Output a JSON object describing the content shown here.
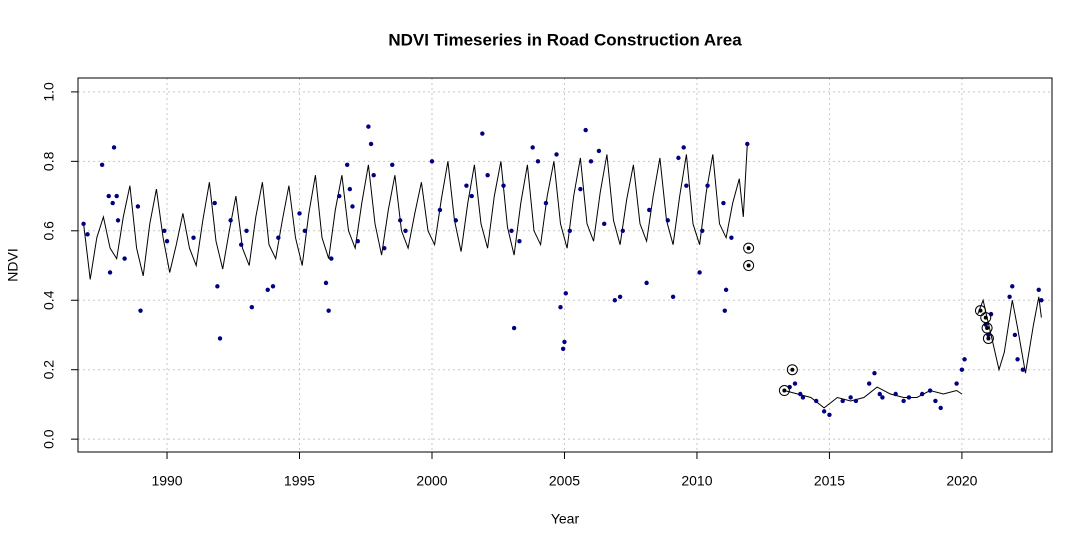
{
  "chart_data": {
    "type": "line",
    "title": "NDVI Timeseries in Road Construction Area",
    "x_label": "Year",
    "y_label": "NDVI",
    "xlim": [
      1986.64,
      2023.4
    ],
    "ylim": [
      -0.037,
      1.04
    ],
    "xticks": [
      1990,
      1995,
      2000,
      2005,
      2010,
      2015,
      2020
    ],
    "yticks": [
      {
        "value": 0,
        "label": "0.0"
      },
      {
        "value": 0.2,
        "label": "0.2"
      },
      {
        "value": 0.4,
        "label": "0.4"
      },
      {
        "value": 0.6,
        "label": "0.6"
      },
      {
        "value": 0.8,
        "label": "0.8"
      },
      {
        "value": 1,
        "label": "1.0"
      }
    ],
    "grid": true,
    "series": [
      {
        "type": "line",
        "color": "#000000",
        "x": [
          1986.85,
          1987.1,
          1987.35,
          1987.6,
          1987.85,
          1988.1,
          1988.35,
          1988.6,
          1988.85,
          1989.1,
          1989.35,
          1989.6,
          1989.85,
          1990.1,
          1990.35,
          1990.6,
          1990.85,
          1991.1,
          1991.35,
          1991.6,
          1991.85,
          1992.1,
          1992.35,
          1992.6,
          1992.85,
          1993.1,
          1993.35,
          1993.6,
          1993.85,
          1994.1,
          1994.35,
          1994.6,
          1994.85,
          1995.1,
          1995.35,
          1995.6,
          1995.85,
          1996.1,
          1996.35,
          1996.6,
          1996.85,
          1997.1,
          1997.35,
          1997.6,
          1997.85,
          1998.1,
          1998.35,
          1998.6,
          1998.85,
          1999.1,
          1999.35,
          1999.6,
          1999.85,
          2000.1,
          2000.35,
          2000.6,
          2000.85,
          2001.1,
          2001.35,
          2001.6,
          2001.85,
          2002.1,
          2002.35,
          2002.6,
          2002.85,
          2003.1,
          2003.35,
          2003.6,
          2003.85,
          2004.1,
          2004.35,
          2004.6,
          2004.85,
          2005.1,
          2005.35,
          2005.6,
          2005.85,
          2006.1,
          2006.35,
          2006.6,
          2006.85,
          2007.1,
          2007.35,
          2007.6,
          2007.85,
          2008.1,
          2008.35,
          2008.6,
          2008.85,
          2009.1,
          2009.35,
          2009.6,
          2009.85,
          2010.1,
          2010.35,
          2010.6,
          2010.85,
          2011.1,
          2011.35,
          2011.6,
          2011.75,
          2011.9,
          2012.5,
          2013.3,
          2013.8,
          2014.3,
          2014.8,
          2015.3,
          2015.8,
          2016.3,
          2016.8,
          2017.3,
          2017.8,
          2018.3,
          2018.8,
          2019.3,
          2019.8,
          2020.0,
          2020.3,
          2020.6,
          2020.8,
          2021.1,
          2021.4,
          2021.6,
          2021.9,
          2022.1,
          2022.4,
          2022.7,
          2022.9,
          2023.0
        ],
        "values": [
          0.62,
          0.46,
          0.58,
          0.64,
          0.55,
          0.52,
          0.64,
          0.73,
          0.55,
          0.47,
          0.62,
          0.72,
          0.58,
          0.48,
          0.56,
          0.65,
          0.55,
          0.5,
          0.63,
          0.74,
          0.57,
          0.49,
          0.6,
          0.7,
          0.55,
          0.5,
          0.64,
          0.74,
          0.56,
          0.52,
          0.63,
          0.73,
          0.58,
          0.5,
          0.65,
          0.76,
          0.58,
          0.52,
          0.66,
          0.76,
          0.6,
          0.55,
          0.68,
          0.79,
          0.62,
          0.53,
          0.66,
          0.76,
          0.6,
          0.55,
          0.65,
          0.74,
          0.6,
          0.56,
          0.69,
          0.8,
          0.63,
          0.54,
          0.68,
          0.79,
          0.62,
          0.55,
          0.7,
          0.8,
          0.61,
          0.53,
          0.68,
          0.79,
          0.6,
          0.56,
          0.7,
          0.8,
          0.62,
          0.55,
          0.7,
          0.81,
          0.62,
          0.57,
          0.71,
          0.82,
          0.63,
          0.56,
          0.69,
          0.79,
          0.62,
          0.57,
          0.7,
          0.81,
          0.63,
          0.56,
          0.7,
          0.82,
          0.62,
          0.56,
          0.71,
          0.82,
          0.62,
          0.58,
          0.68,
          0.75,
          0.64,
          0.85,
          null,
          0.14,
          0.13,
          0.12,
          0.09,
          0.12,
          0.11,
          0.12,
          0.15,
          0.13,
          0.12,
          0.12,
          0.14,
          0.13,
          0.14,
          0.13,
          null,
          0.36,
          0.4,
          0.3,
          0.2,
          0.25,
          0.4,
          0.32,
          0.19,
          0.33,
          0.41,
          0.35
        ]
      },
      {
        "type": "scatter",
        "color": "#000080",
        "x": [
          1986.85,
          1987.0,
          1987.55,
          1987.8,
          1987.85,
          1987.95,
          1988.0,
          1988.1,
          1988.15,
          1988.4,
          1988.9,
          1989.0,
          1989.9,
          1990.0,
          1991.0,
          1991.8,
          1991.9,
          1992.0,
          1992.4,
          1992.8,
          1993.0,
          1993.2,
          1993.8,
          1994.0,
          1994.2,
          1995.0,
          1995.2,
          1996.0,
          1996.1,
          1996.2,
          1996.5,
          1996.8,
          1996.9,
          1997.0,
          1997.2,
          1997.6,
          1997.7,
          1997.8,
          1998.2,
          1998.5,
          1998.8,
          1999.0,
          2000.0,
          2000.3,
          2000.9,
          2001.3,
          2001.5,
          2001.9,
          2002.1,
          2002.7,
          2003.0,
          2003.1,
          2003.3,
          2003.8,
          2004.0,
          2004.3,
          2004.7,
          2004.85,
          2004.95,
          2005.0,
          2005.05,
          2005.2,
          2005.6,
          2005.8,
          2006.0,
          2006.3,
          2006.5,
          2006.9,
          2007.1,
          2007.2,
          2008.1,
          2008.2,
          2008.9,
          2009.1,
          2009.3,
          2009.5,
          2009.6,
          2010.1,
          2010.2,
          2010.4,
          2011.0,
          2011.05,
          2011.1,
          2011.3,
          2011.9,
          2013.5,
          2013.7,
          2013.9,
          2014.0,
          2014.5,
          2014.8,
          2015.0,
          2015.5,
          2015.8,
          2016.0,
          2016.5,
          2016.7,
          2016.9,
          2017.0,
          2017.5,
          2017.8,
          2018.0,
          2018.5,
          2018.8,
          2019.0,
          2019.2,
          2019.8,
          2020.0,
          2020.1,
          2020.9,
          2021.0,
          2021.1,
          2021.8,
          2021.9,
          2022.0,
          2022.1,
          2022.3,
          2022.9,
          2023.0
        ],
        "values": [
          0.62,
          0.59,
          0.79,
          0.7,
          0.48,
          0.68,
          0.84,
          0.7,
          0.63,
          0.52,
          0.67,
          0.37,
          0.6,
          0.57,
          0.58,
          0.68,
          0.44,
          0.29,
          0.63,
          0.56,
          0.6,
          0.38,
          0.43,
          0.44,
          0.58,
          0.65,
          0.6,
          0.45,
          0.37,
          0.52,
          0.7,
          0.79,
          0.72,
          0.67,
          0.57,
          0.9,
          0.85,
          0.76,
          0.55,
          0.79,
          0.63,
          0.6,
          0.8,
          0.66,
          0.63,
          0.73,
          0.7,
          0.88,
          0.76,
          0.73,
          0.6,
          0.32,
          0.57,
          0.84,
          0.8,
          0.68,
          0.82,
          0.38,
          0.26,
          0.28,
          0.42,
          0.6,
          0.72,
          0.89,
          0.8,
          0.83,
          0.62,
          0.4,
          0.41,
          0.6,
          0.45,
          0.66,
          0.63,
          0.41,
          0.81,
          0.84,
          0.73,
          0.48,
          0.6,
          0.73,
          0.68,
          0.37,
          0.43,
          0.58,
          0.85,
          0.15,
          0.16,
          0.13,
          0.12,
          0.11,
          0.08,
          0.07,
          0.11,
          0.12,
          0.11,
          0.16,
          0.19,
          0.13,
          0.12,
          0.13,
          0.11,
          0.12,
          0.13,
          0.14,
          0.11,
          0.09,
          0.16,
          0.2,
          0.23,
          0.33,
          0.3,
          0.36,
          0.41,
          0.44,
          0.3,
          0.23,
          0.2,
          0.43,
          0.4
        ]
      },
      {
        "type": "circled",
        "color": "#000000",
        "x": [
          2011.95,
          2011.95,
          2013.3,
          2013.6,
          2020.7,
          2020.9,
          2020.95,
          2021.0
        ],
        "values": [
          0.55,
          0.5,
          0.14,
          0.2,
          0.37,
          0.35,
          0.32,
          0.29
        ]
      }
    ]
  }
}
